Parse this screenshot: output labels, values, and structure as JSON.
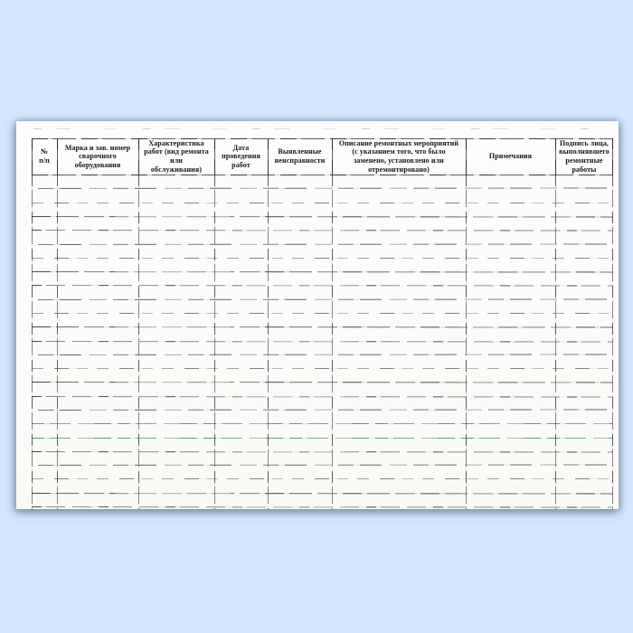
{
  "table": {
    "columns": [
      {
        "id": "number",
        "label": "№\nп/п"
      },
      {
        "id": "equipment",
        "label": "Марка и зав. номер\nсварочного\nоборудования"
      },
      {
        "id": "work-type",
        "label": "Характеристика\nработ (вид ремонта\nили\nобслуживания)"
      },
      {
        "id": "date",
        "label": "Дата\nпроведения\nработ"
      },
      {
        "id": "faults",
        "label": "Выявленные\nнеисправности"
      },
      {
        "id": "repairs",
        "label": "Описание ремонтных мероприятий\n(с указанием того, что было\nзаменено, установлено или\nотремонтировано)"
      },
      {
        "id": "notes",
        "label": "Примечания"
      },
      {
        "id": "signature",
        "label": "Подпись лица,\nвыполнявшего\nремонтные\nработы"
      }
    ],
    "row_count": 24,
    "rows": []
  },
  "colors": {
    "background": "#d2e7fb",
    "paper": "#fcfcfa",
    "ink": "#151515",
    "ruling_gray": "#4a4a4d",
    "artifact_green": "#2e8b57"
  }
}
